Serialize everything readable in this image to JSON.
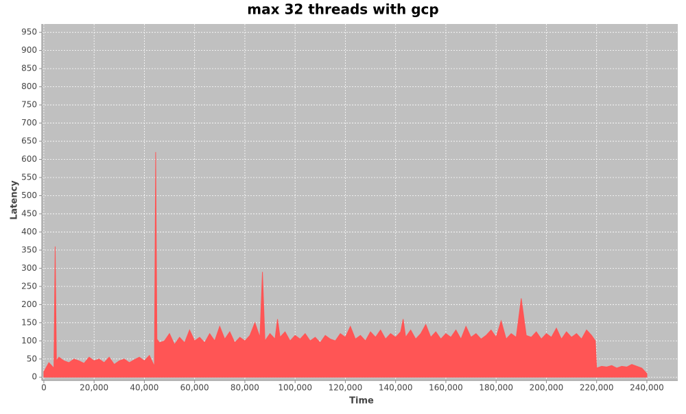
{
  "chart_data": {
    "type": "area",
    "title": "max 32 threads with gcp",
    "x_label": "Time",
    "y_label": "Latency",
    "color": "#ff5555",
    "grid": true,
    "x": [
      0,
      2000,
      4000,
      4500,
      5000,
      6000,
      8000,
      10000,
      12000,
      14000,
      16000,
      18000,
      20000,
      22000,
      24000,
      26000,
      28000,
      30000,
      32000,
      34000,
      36000,
      38000,
      40000,
      42000,
      44000,
      44500,
      45000,
      46000,
      48000,
      50000,
      52000,
      54000,
      56000,
      58000,
      60000,
      62000,
      64000,
      66000,
      68000,
      70000,
      72000,
      74000,
      76000,
      78000,
      80000,
      82000,
      84000,
      86000,
      87000,
      88000,
      90000,
      92000,
      93000,
      94000,
      96000,
      98000,
      100000,
      102000,
      104000,
      106000,
      108000,
      110000,
      112000,
      114000,
      116000,
      118000,
      120000,
      122000,
      124000,
      126000,
      128000,
      130000,
      132000,
      134000,
      136000,
      138000,
      140000,
      142000,
      143000,
      144000,
      146000,
      148000,
      150000,
      152000,
      154000,
      156000,
      158000,
      160000,
      162000,
      164000,
      166000,
      168000,
      170000,
      172000,
      174000,
      176000,
      178000,
      180000,
      182000,
      184000,
      186000,
      188000,
      190000,
      192000,
      194000,
      196000,
      198000,
      200000,
      202000,
      204000,
      206000,
      208000,
      210000,
      212000,
      214000,
      216000,
      218000,
      219500,
      220000,
      222000,
      224000,
      226000,
      228000,
      230000,
      232000,
      234000,
      236000,
      238000,
      240000
    ],
    "values": [
      15,
      40,
      25,
      360,
      45,
      55,
      45,
      40,
      50,
      45,
      38,
      55,
      45,
      50,
      40,
      55,
      35,
      45,
      50,
      40,
      48,
      55,
      45,
      60,
      30,
      620,
      105,
      95,
      100,
      120,
      90,
      110,
      95,
      130,
      100,
      110,
      95,
      120,
      100,
      140,
      105,
      125,
      95,
      110,
      100,
      115,
      150,
      110,
      290,
      100,
      120,
      105,
      160,
      110,
      125,
      100,
      115,
      105,
      120,
      100,
      110,
      95,
      115,
      105,
      100,
      120,
      110,
      140,
      105,
      115,
      100,
      125,
      110,
      130,
      105,
      120,
      110,
      125,
      160,
      110,
      130,
      105,
      120,
      145,
      110,
      125,
      105,
      120,
      110,
      130,
      105,
      140,
      110,
      120,
      105,
      115,
      130,
      110,
      155,
      105,
      120,
      110,
      217,
      115,
      110,
      125,
      105,
      120,
      110,
      135,
      105,
      125,
      110,
      120,
      105,
      130,
      115,
      100,
      25,
      30,
      28,
      32,
      25,
      30,
      28,
      35,
      30,
      25,
      10
    ],
    "xlim": [
      -800,
      252300
    ],
    "ylim": [
      -9,
      973
    ],
    "xticks": [
      0,
      {
        "value": 20000,
        "label": "20,000"
      },
      {
        "value": 40000,
        "label": "40,000"
      },
      {
        "value": 60000,
        "label": "60,000"
      },
      {
        "value": 80000,
        "label": "80,000"
      },
      {
        "value": 100000,
        "label": "100,000"
      },
      {
        "value": 120000,
        "label": "120,000"
      },
      {
        "value": 140000,
        "label": "140,000"
      },
      {
        "value": 160000,
        "label": "160,000"
      },
      {
        "value": 180000,
        "label": "180,000"
      },
      {
        "value": 200000,
        "label": "200,000"
      },
      {
        "value": 220000,
        "label": "220,000"
      },
      {
        "value": 240000,
        "label": "240,000"
      }
    ],
    "yticks": [
      0,
      50,
      100,
      150,
      200,
      250,
      300,
      350,
      400,
      450,
      500,
      550,
      600,
      650,
      700,
      750,
      800,
      850,
      900,
      950
    ]
  }
}
